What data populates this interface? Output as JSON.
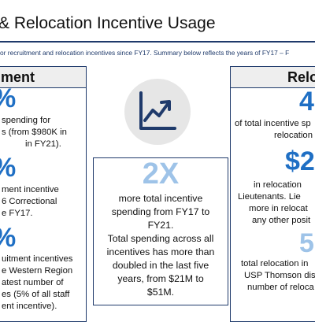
{
  "header": {
    "title": "& Relocation Incentive Usage",
    "subtitle": "or recruitment and relocation incentives since FY17. Summary below reflects the years of FY17 – F"
  },
  "left": {
    "heading": "ment",
    "stat1": {
      "value": "%",
      "lines": [
        "spending for",
        "s (from $980K in",
        "in FY21)."
      ]
    },
    "stat2": {
      "value": "%",
      "lines": [
        "ment incentive",
        "6 Correctional",
        "e FY17."
      ]
    },
    "stat3": {
      "value": "%",
      "lines": [
        "uitment incentives",
        "e Western Region",
        "atest number of",
        "es (5% of all staff",
        "ent incentive)."
      ]
    }
  },
  "center": {
    "icon": "chart-trending-up-icon",
    "stat": "2X",
    "lines": [
      "more total incentive",
      "spending from FY17 to",
      "FY21.",
      "Total spending across all",
      "incentives has more than",
      "doubled in the last five",
      "years, from $21M to",
      "$51M."
    ]
  },
  "right": {
    "heading": "Relo",
    "stat1": {
      "value": "4",
      "lines": [
        "of total incentive sp",
        "relocation"
      ]
    },
    "stat2": {
      "value": "$2",
      "lines": [
        "in relocation",
        "Lieutenants. Lie",
        "more in relocat",
        "any other posit"
      ]
    },
    "stat3": {
      "value": "5",
      "lines": [
        "total relocation in",
        "USP Thomson dis",
        "number of reloca"
      ]
    }
  },
  "colors": {
    "accent": "#1f6fc4",
    "navy": "#1f3a6b",
    "light_blue": "#9ec3e8"
  }
}
